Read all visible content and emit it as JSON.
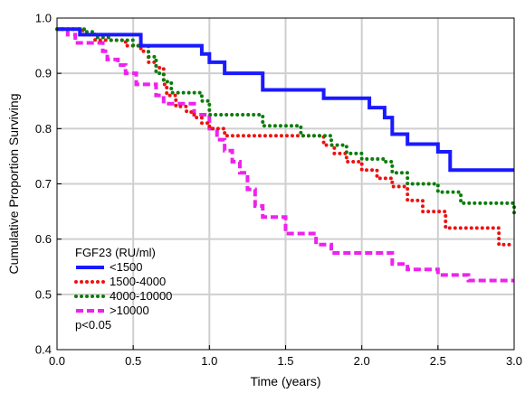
{
  "chart_data": {
    "type": "line",
    "xlabel": "Time (years)",
    "ylabel": "Cumulative Proportion Surviving",
    "xlim": [
      0,
      3
    ],
    "ylim": [
      0.4,
      1
    ],
    "xticks": [
      "0.0",
      "0.5",
      "1.0",
      "1.5",
      "2.0",
      "2.5",
      "3.0"
    ],
    "yticks": [
      "0.4",
      "0.5",
      "0.6",
      "0.7",
      "0.8",
      "0.9",
      "1.0"
    ],
    "grid": true,
    "legend_title": "FGF23 (RU/ml)",
    "legend_position": "bottom-left",
    "annotation": "p<0.05",
    "series": [
      {
        "name": "<1500",
        "color": "#1a1aff",
        "style": "solid",
        "x": [
          0.0,
          0.15,
          0.55,
          0.95,
          1.0,
          1.1,
          1.2,
          1.35,
          1.6,
          1.75,
          2.05,
          2.15,
          2.2,
          2.3,
          2.5,
          2.58,
          3.0
        ],
        "y": [
          0.98,
          0.97,
          0.95,
          0.935,
          0.92,
          0.9,
          0.9,
          0.87,
          0.87,
          0.855,
          0.838,
          0.82,
          0.79,
          0.772,
          0.758,
          0.725,
          0.725
        ]
      },
      {
        "name": "1500-4000",
        "color": "#ee1111",
        "style": "dotted",
        "x": [
          0.0,
          0.17,
          0.25,
          0.32,
          0.45,
          0.55,
          0.6,
          0.65,
          0.7,
          0.72,
          0.78,
          0.85,
          0.9,
          0.95,
          1.0,
          1.1,
          1.3,
          1.7,
          1.75,
          1.82,
          1.9,
          2.0,
          2.1,
          2.2,
          2.3,
          2.4,
          2.55,
          2.9,
          3.0
        ],
        "y": [
          0.98,
          0.97,
          0.96,
          0.96,
          0.95,
          0.94,
          0.92,
          0.91,
          0.88,
          0.86,
          0.84,
          0.83,
          0.82,
          0.81,
          0.8,
          0.787,
          0.787,
          0.787,
          0.77,
          0.755,
          0.74,
          0.725,
          0.71,
          0.695,
          0.67,
          0.65,
          0.62,
          0.59,
          0.59
        ]
      },
      {
        "name": "4000-10000",
        "color": "#0a7d0a",
        "style": "dotted",
        "x": [
          0.0,
          0.18,
          0.25,
          0.35,
          0.5,
          0.6,
          0.65,
          0.7,
          0.75,
          0.95,
          1.0,
          1.35,
          1.6,
          1.75,
          1.8,
          1.9,
          2.0,
          2.15,
          2.2,
          2.3,
          2.5,
          2.65,
          3.0
        ],
        "y": [
          0.98,
          0.975,
          0.965,
          0.96,
          0.95,
          0.93,
          0.9,
          0.885,
          0.865,
          0.85,
          0.825,
          0.805,
          0.787,
          0.787,
          0.77,
          0.755,
          0.745,
          0.74,
          0.72,
          0.7,
          0.685,
          0.665,
          0.645
        ]
      },
      {
        "name": ">10000",
        "color": "#ee22ee",
        "style": "dashed",
        "x": [
          0.0,
          0.07,
          0.12,
          0.3,
          0.33,
          0.4,
          0.45,
          0.52,
          0.65,
          0.7,
          0.9,
          1.0,
          1.05,
          1.1,
          1.15,
          1.2,
          1.25,
          1.3,
          1.35,
          1.5,
          1.6,
          1.7,
          1.8,
          2.1,
          2.2,
          2.3,
          2.5,
          2.7,
          3.0
        ],
        "y": [
          0.98,
          0.97,
          0.955,
          0.94,
          0.925,
          0.915,
          0.9,
          0.88,
          0.86,
          0.845,
          0.825,
          0.8,
          0.78,
          0.76,
          0.74,
          0.72,
          0.69,
          0.66,
          0.64,
          0.61,
          0.61,
          0.59,
          0.575,
          0.575,
          0.555,
          0.545,
          0.535,
          0.525,
          0.525
        ]
      }
    ]
  }
}
